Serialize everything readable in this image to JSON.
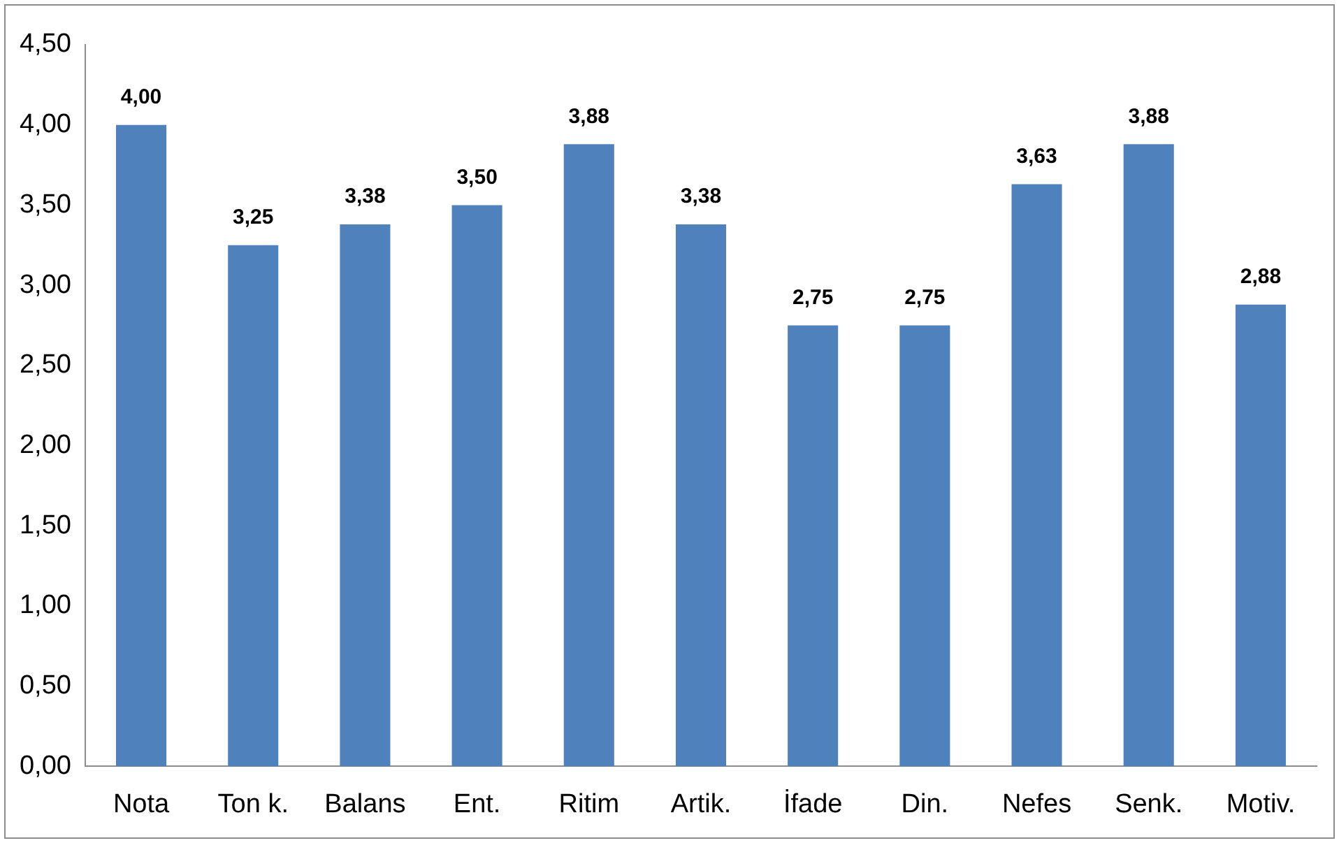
{
  "chart_data": {
    "type": "bar",
    "categories": [
      "Nota",
      "Ton k.",
      "Balans",
      "Ent.",
      "Ritim",
      "Artik.",
      "İfade",
      "Din.",
      "Nefes",
      "Senk.",
      "Motiv."
    ],
    "values": [
      4.0,
      3.25,
      3.38,
      3.5,
      3.88,
      3.38,
      2.75,
      2.75,
      3.63,
      3.88,
      2.88
    ],
    "value_labels": [
      "4,00",
      "3,25",
      "3,38",
      "3,50",
      "3,88",
      "3,38",
      "2,75",
      "2,75",
      "3,63",
      "3,88",
      "2,88"
    ],
    "color": "#4f81bd",
    "ylim": [
      0,
      4.5
    ],
    "yticks": [
      {
        "value": 0,
        "label": "0,00"
      },
      {
        "value": 0.5,
        "label": "0,50"
      },
      {
        "value": 1,
        "label": "1,00"
      },
      {
        "value": 1.5,
        "label": "1,50"
      },
      {
        "value": 2,
        "label": "2,00"
      },
      {
        "value": 2.5,
        "label": "2,50"
      },
      {
        "value": 3,
        "label": "3,00"
      },
      {
        "value": 3.5,
        "label": "3,50"
      },
      {
        "value": 4,
        "label": "4,00"
      },
      {
        "value": 4.5,
        "label": "4,50"
      }
    ],
    "grid": false,
    "legend": false
  }
}
